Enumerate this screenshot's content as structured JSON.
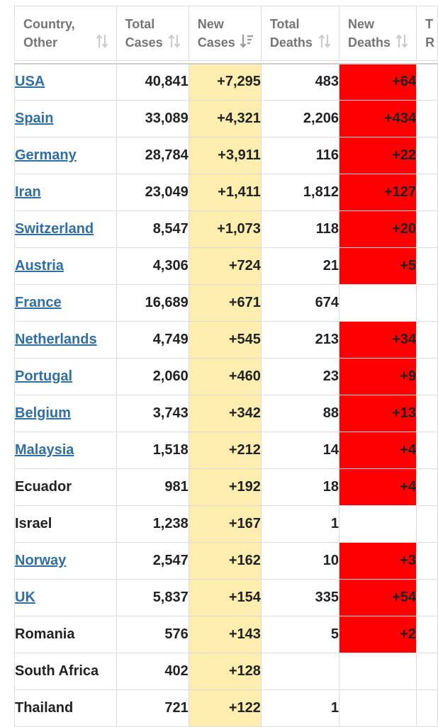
{
  "columns": [
    {
      "line1": "Country,",
      "line2": "Other"
    },
    {
      "line1": "Total",
      "line2": "Cases"
    },
    {
      "line1": "New",
      "line2": "Cases"
    },
    {
      "line1": "Total",
      "line2": "Deaths"
    },
    {
      "line1": "New",
      "line2": "Deaths"
    },
    {
      "line1": "T",
      "line2": "R"
    }
  ],
  "colors": {
    "link": "#2f6fa3",
    "new_cases_bg": "#fdeeb0",
    "new_deaths_bg": "#ff0000"
  },
  "rows": [
    {
      "country": "USA",
      "link": true,
      "total_cases": "40,841",
      "new_cases": "+7,295",
      "total_deaths": "483",
      "new_deaths": "+64"
    },
    {
      "country": "Spain",
      "link": true,
      "total_cases": "33,089",
      "new_cases": "+4,321",
      "total_deaths": "2,206",
      "new_deaths": "+434"
    },
    {
      "country": "Germany",
      "link": true,
      "total_cases": "28,784",
      "new_cases": "+3,911",
      "total_deaths": "116",
      "new_deaths": "+22"
    },
    {
      "country": "Iran",
      "link": true,
      "total_cases": "23,049",
      "new_cases": "+1,411",
      "total_deaths": "1,812",
      "new_deaths": "+127"
    },
    {
      "country": "Switzerland",
      "link": true,
      "total_cases": "8,547",
      "new_cases": "+1,073",
      "total_deaths": "118",
      "new_deaths": "+20"
    },
    {
      "country": "Austria",
      "link": true,
      "total_cases": "4,306",
      "new_cases": "+724",
      "total_deaths": "21",
      "new_deaths": "+5"
    },
    {
      "country": "France",
      "link": true,
      "total_cases": "16,689",
      "new_cases": "+671",
      "total_deaths": "674",
      "new_deaths": ""
    },
    {
      "country": "Netherlands",
      "link": true,
      "total_cases": "4,749",
      "new_cases": "+545",
      "total_deaths": "213",
      "new_deaths": "+34"
    },
    {
      "country": "Portugal",
      "link": true,
      "total_cases": "2,060",
      "new_cases": "+460",
      "total_deaths": "23",
      "new_deaths": "+9"
    },
    {
      "country": "Belgium",
      "link": true,
      "total_cases": "3,743",
      "new_cases": "+342",
      "total_deaths": "88",
      "new_deaths": "+13"
    },
    {
      "country": "Malaysia",
      "link": true,
      "total_cases": "1,518",
      "new_cases": "+212",
      "total_deaths": "14",
      "new_deaths": "+4"
    },
    {
      "country": "Ecuador",
      "link": false,
      "total_cases": "981",
      "new_cases": "+192",
      "total_deaths": "18",
      "new_deaths": "+4"
    },
    {
      "country": "Israel",
      "link": false,
      "total_cases": "1,238",
      "new_cases": "+167",
      "total_deaths": "1",
      "new_deaths": ""
    },
    {
      "country": "Norway",
      "link": true,
      "total_cases": "2,547",
      "new_cases": "+162",
      "total_deaths": "10",
      "new_deaths": "+3"
    },
    {
      "country": "UK",
      "link": true,
      "total_cases": "5,837",
      "new_cases": "+154",
      "total_deaths": "335",
      "new_deaths": "+54"
    },
    {
      "country": "Romania",
      "link": false,
      "total_cases": "576",
      "new_cases": "+143",
      "total_deaths": "5",
      "new_deaths": "+2"
    },
    {
      "country": "South Africa",
      "link": false,
      "total_cases": "402",
      "new_cases": "+128",
      "total_deaths": "",
      "new_deaths": ""
    },
    {
      "country": "Thailand",
      "link": false,
      "total_cases": "721",
      "new_cases": "+122",
      "total_deaths": "1",
      "new_deaths": ""
    }
  ]
}
